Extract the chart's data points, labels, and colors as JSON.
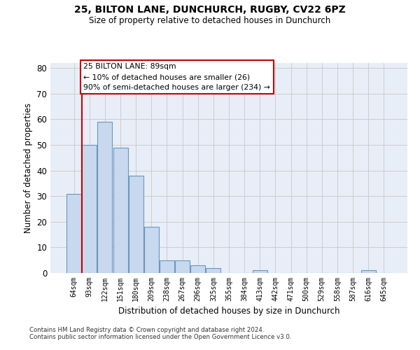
{
  "title1": "25, BILTON LANE, DUNCHURCH, RUGBY, CV22 6PZ",
  "title2": "Size of property relative to detached houses in Dunchurch",
  "xlabel": "Distribution of detached houses by size in Dunchurch",
  "ylabel": "Number of detached properties",
  "bar_color": "#c8d8ee",
  "bar_edge_color": "#6699bb",
  "grid_color": "#cccccc",
  "bg_color": "#e8eef8",
  "annotation_box_color": "#cc0000",
  "vline_color": "#cc0000",
  "categories": [
    "64sqm",
    "93sqm",
    "122sqm",
    "151sqm",
    "180sqm",
    "209sqm",
    "238sqm",
    "267sqm",
    "296sqm",
    "325sqm",
    "355sqm",
    "384sqm",
    "413sqm",
    "442sqm",
    "471sqm",
    "500sqm",
    "529sqm",
    "558sqm",
    "587sqm",
    "616sqm",
    "645sqm"
  ],
  "values": [
    31,
    50,
    59,
    49,
    38,
    18,
    5,
    5,
    3,
    2,
    0,
    0,
    1,
    0,
    0,
    0,
    0,
    0,
    0,
    1,
    0
  ],
  "vline_pos": 0.5,
  "annotation_line1": "25 BILTON LANE: 89sqm",
  "annotation_line2": "← 10% of detached houses are smaller (26)",
  "annotation_line3": "90% of semi-detached houses are larger (234) →",
  "footer1": "Contains HM Land Registry data © Crown copyright and database right 2024.",
  "footer2": "Contains public sector information licensed under the Open Government Licence v3.0.",
  "ylim": [
    0,
    82
  ],
  "yticks": [
    0,
    10,
    20,
    30,
    40,
    50,
    60,
    70,
    80
  ]
}
